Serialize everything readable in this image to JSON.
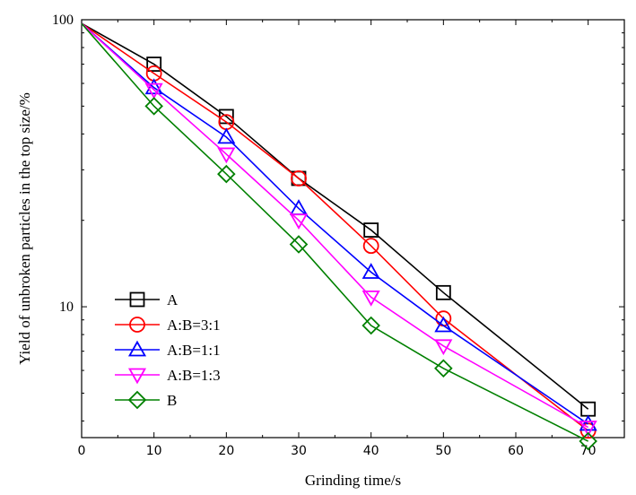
{
  "chart_data": {
    "type": "line",
    "title": "",
    "xlabel": "Grinding time/s",
    "ylabel": "Yield of unbroken particles in the top size/%",
    "xlim": [
      0,
      75
    ],
    "ylim": [
      3.5,
      100
    ],
    "yscale": "log",
    "x_ticks": [
      0,
      10,
      20,
      30,
      40,
      50,
      60,
      70
    ],
    "y_ticks": [
      10,
      100
    ],
    "grid": false,
    "legend_position": "bottom-left",
    "series": [
      {
        "name": "A",
        "marker": "square",
        "color": "#000000",
        "x": [
          0,
          10,
          20,
          30,
          40,
          50,
          70
        ],
        "y": [
          97,
          70,
          46,
          28,
          18.5,
          11.2,
          4.4
        ]
      },
      {
        "name": "A:B=3:1",
        "marker": "circle",
        "color": "#ff0000",
        "x": [
          0,
          10,
          20,
          30,
          40,
          50,
          70
        ],
        "y": [
          97,
          65,
          44,
          28,
          16.3,
          9.1,
          3.7
        ]
      },
      {
        "name": "A:B=1:1",
        "marker": "triangle-up",
        "color": "#0000ff",
        "x": [
          0,
          10,
          20,
          30,
          40,
          50,
          70
        ],
        "y": [
          97,
          58,
          39,
          22,
          13.2,
          8.6,
          3.9
        ]
      },
      {
        "name": "A:B=1:3",
        "marker": "triangle-down",
        "color": "#ff00ff",
        "x": [
          0,
          10,
          20,
          30,
          40,
          50,
          70
        ],
        "y": [
          97,
          57,
          34,
          20,
          10.8,
          7.3,
          3.8
        ]
      },
      {
        "name": "B",
        "marker": "diamond",
        "color": "#008000",
        "x": [
          0,
          10,
          20,
          30,
          40,
          50,
          70
        ],
        "y": [
          97,
          50,
          29,
          16.5,
          8.6,
          6.1,
          3.4
        ]
      }
    ]
  }
}
